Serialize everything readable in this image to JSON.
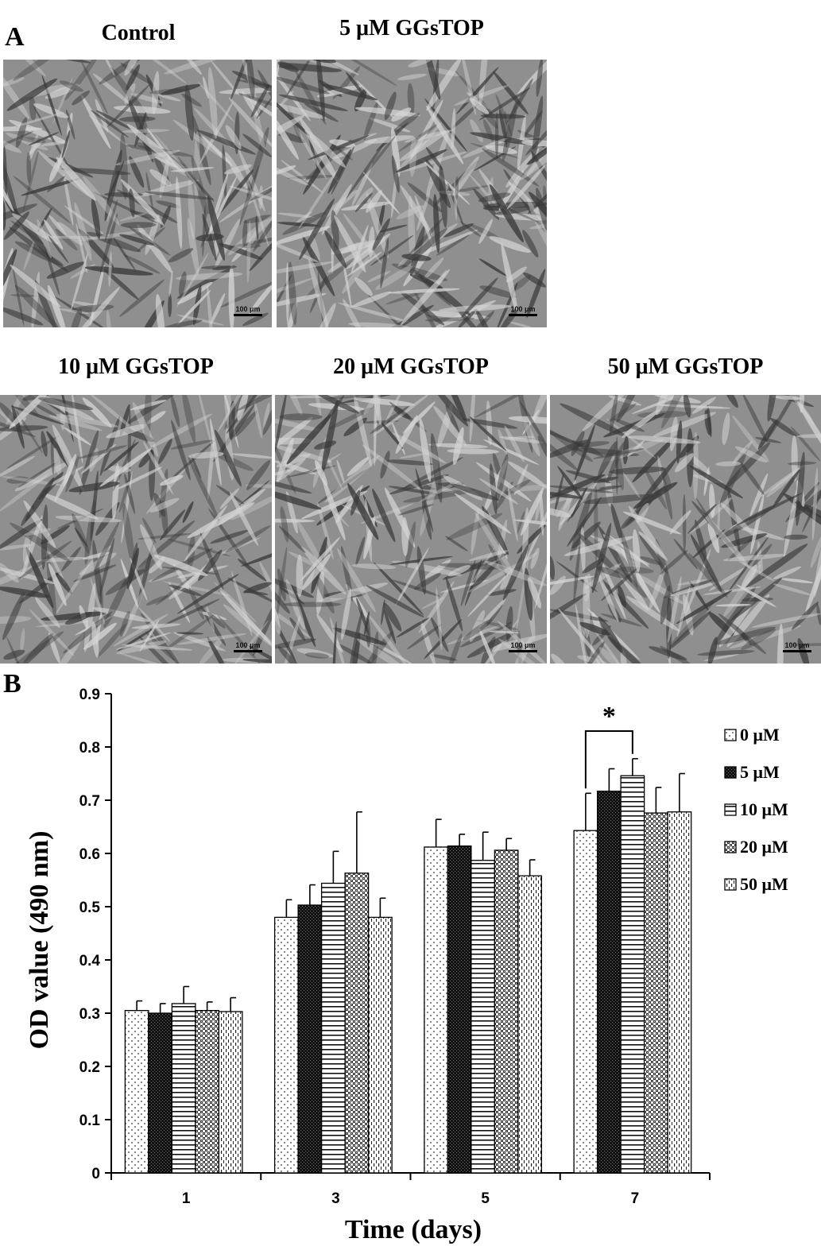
{
  "figure": {
    "panel_a_letter": "A",
    "panel_b_letter": "B",
    "images": [
      {
        "title": "Control",
        "scale_label": "100 μm"
      },
      {
        "title": "5 μM GGsTOP",
        "scale_label": "100 μm"
      },
      {
        "title": "10 μM GGsTOP",
        "scale_label": "100 μm"
      },
      {
        "title": "20 μM GGsTOP",
        "scale_label": "100 μm"
      },
      {
        "title": "50 μM GGsTOP",
        "scale_label": "100 μm"
      }
    ]
  },
  "chart_data": {
    "type": "bar",
    "title": "",
    "xlabel": "Time (days)",
    "ylabel": "OD value (490 nm)",
    "ylim": [
      0,
      0.9
    ],
    "yticks": [
      "0",
      "0.1",
      "0.2",
      "0.3",
      "0.4",
      "0.5",
      "0.6",
      "0.7",
      "0.8",
      "0.9"
    ],
    "categories": [
      "1",
      "3",
      "5",
      "7"
    ],
    "legend_position": "right",
    "series": [
      {
        "name": "0 μM",
        "pattern": "dots",
        "values": [
          0.305,
          0.48,
          0.612,
          0.643
        ],
        "errors": [
          0.018,
          0.033,
          0.052,
          0.07
        ]
      },
      {
        "name": "5 μM",
        "pattern": "dense-dark",
        "values": [
          0.3,
          0.503,
          0.614,
          0.717
        ],
        "errors": [
          0.018,
          0.038,
          0.022,
          0.042
        ]
      },
      {
        "name": "10 μM",
        "pattern": "hlines",
        "values": [
          0.318,
          0.544,
          0.587,
          0.746
        ],
        "errors": [
          0.032,
          0.06,
          0.053,
          0.032
        ]
      },
      {
        "name": "20 μM",
        "pattern": "checker",
        "values": [
          0.305,
          0.563,
          0.606,
          0.676
        ],
        "errors": [
          0.016,
          0.115,
          0.022,
          0.048
        ]
      },
      {
        "name": "50 μM",
        "pattern": "vdash",
        "values": [
          0.303,
          0.48,
          0.558,
          0.678
        ],
        "errors": [
          0.026,
          0.036,
          0.03,
          0.072
        ]
      }
    ],
    "annotations": [
      {
        "text": "*",
        "between": [
          "0 μM",
          "10 μM"
        ],
        "category": "7"
      }
    ]
  }
}
